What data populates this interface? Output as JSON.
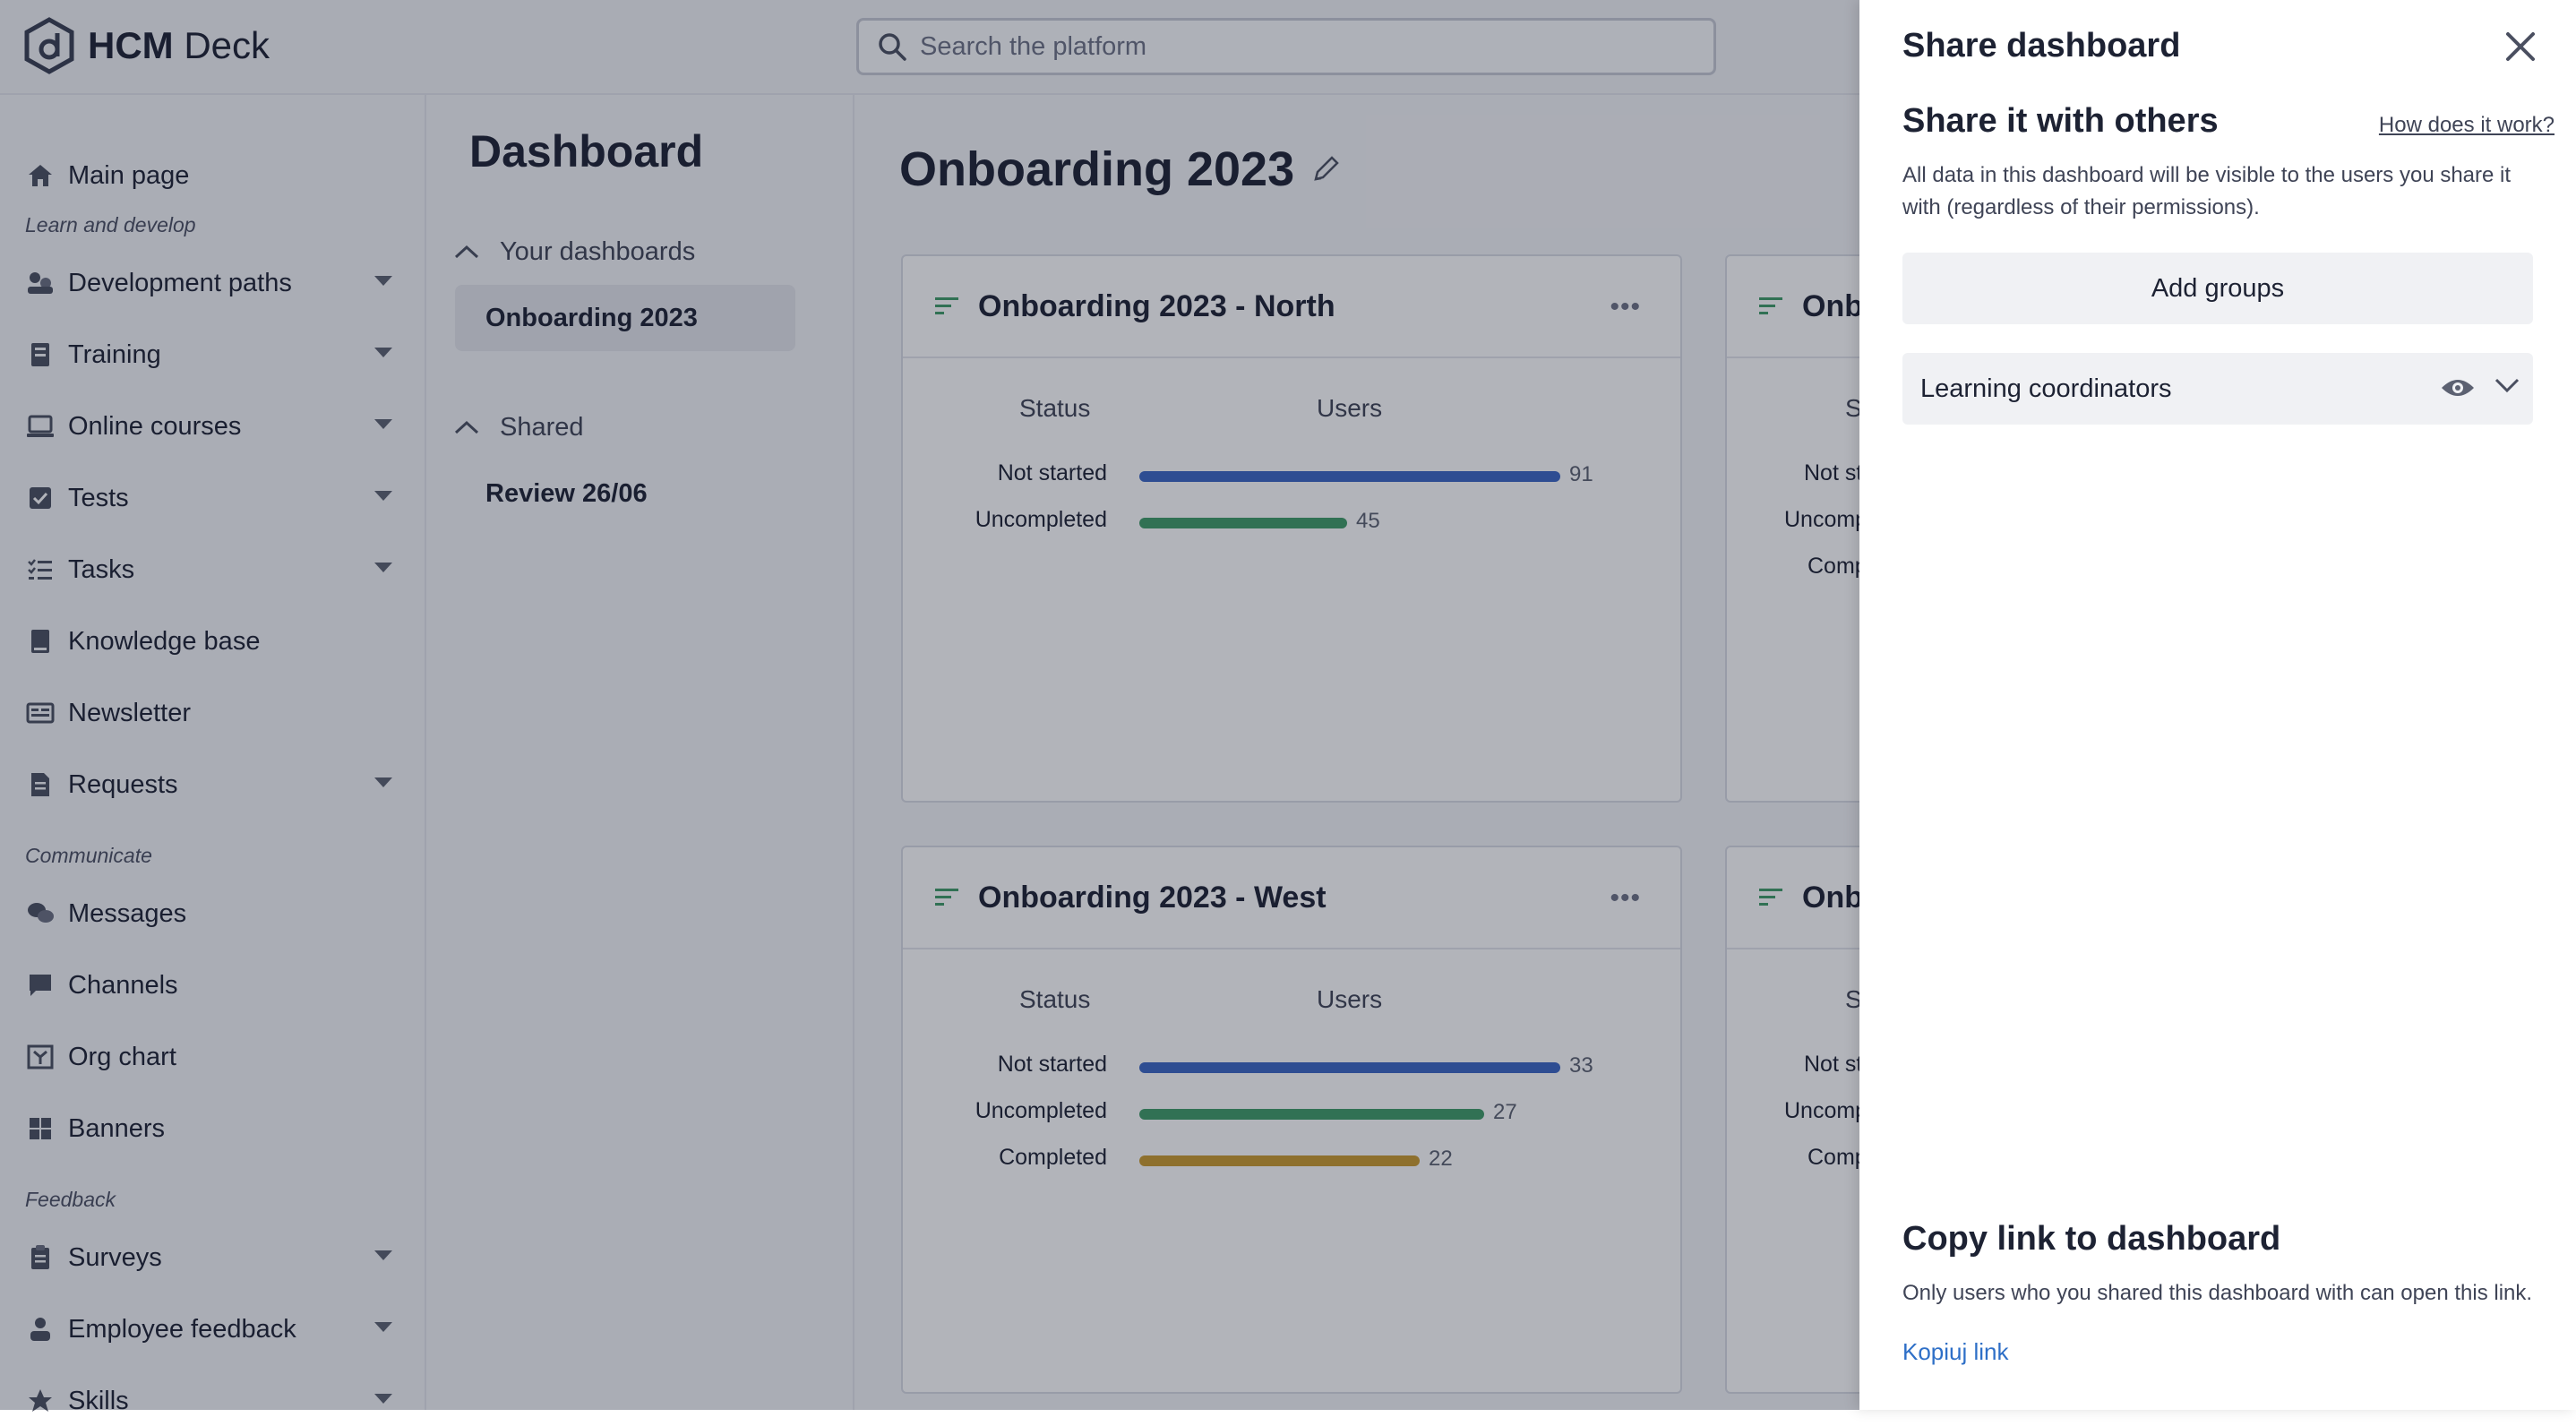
{
  "app": {
    "brand_primary": "HCM",
    "brand_secondary": "Deck"
  },
  "search": {
    "placeholder": "Search the platform"
  },
  "sidebar": {
    "items": [
      {
        "label": "Main page",
        "icon": "home-icon"
      },
      {
        "section": "Learn and develop"
      },
      {
        "label": "Development paths",
        "icon": "paths-icon",
        "expandable": true
      },
      {
        "label": "Training",
        "icon": "training-icon",
        "expandable": true
      },
      {
        "label": "Online courses",
        "icon": "laptop-icon",
        "expandable": true
      },
      {
        "label": "Tests",
        "icon": "checkbox-icon",
        "expandable": true
      },
      {
        "label": "Tasks",
        "icon": "task-list-icon",
        "expandable": true
      },
      {
        "label": "Knowledge base",
        "icon": "book-icon"
      },
      {
        "label": "Newsletter",
        "icon": "newsletter-icon"
      },
      {
        "label": "Requests",
        "icon": "document-icon",
        "expandable": true
      },
      {
        "section": "Communicate"
      },
      {
        "label": "Messages",
        "icon": "chat-bubbles-icon"
      },
      {
        "label": "Channels",
        "icon": "channel-icon"
      },
      {
        "label": "Org chart",
        "icon": "org-chart-icon"
      },
      {
        "label": "Banners",
        "icon": "grid-icon"
      },
      {
        "section": "Feedback"
      },
      {
        "label": "Surveys",
        "icon": "clipboard-icon",
        "expandable": true
      },
      {
        "label": "Employee feedback",
        "icon": "person-feedback-icon",
        "expandable": true
      },
      {
        "label": "Skills",
        "icon": "star-icon",
        "expandable": true
      }
    ]
  },
  "dashboards": {
    "title": "Dashboard",
    "your_label": "Your dashboards",
    "your_items": [
      "Onboarding 2023"
    ],
    "shared_label": "Shared",
    "shared_items": [
      "Review 26/06"
    ]
  },
  "main": {
    "title": "Onboarding 2023",
    "cards": [
      {
        "title": "Onboarding 2023 - North",
        "col_status": "Status",
        "col_users": "Users",
        "rows": [
          {
            "label": "Not started",
            "value": 91,
            "color": "#3b66c4"
          },
          {
            "label": "Uncompleted",
            "value": 45,
            "color": "#3f9b67"
          }
        ]
      },
      {
        "title": "Onboarding 2023 - West",
        "col_status": "Status",
        "col_users": "Users",
        "rows": [
          {
            "label": "Not started",
            "value": 33,
            "color": "#3b66c4"
          },
          {
            "label": "Uncompleted",
            "value": 27,
            "color": "#3f9b67"
          },
          {
            "label": "Completed",
            "value": 22,
            "color": "#c99a2e"
          }
        ]
      }
    ],
    "partial_cards": [
      {
        "title": "Onbo",
        "col": "St",
        "rows": [
          "Not st",
          "Uncomp",
          "Comp"
        ]
      },
      {
        "title": "Onbo",
        "col": "St",
        "rows": [
          "Not st",
          "Uncomp",
          "Comp"
        ]
      }
    ]
  },
  "share_panel": {
    "title": "Share dashboard",
    "section_title": "Share it with others",
    "how_link": "How does it work?",
    "description": "All data in this dashboard will be visible to the users you share it with (regardless of their permissions).",
    "add_groups": "Add groups",
    "group_name": "Learning coordinators",
    "copy_title": "Copy link to dashboard",
    "copy_desc": "Only users who you shared this dashboard with can open this link.",
    "copy_link": "Kopiuj link"
  }
}
